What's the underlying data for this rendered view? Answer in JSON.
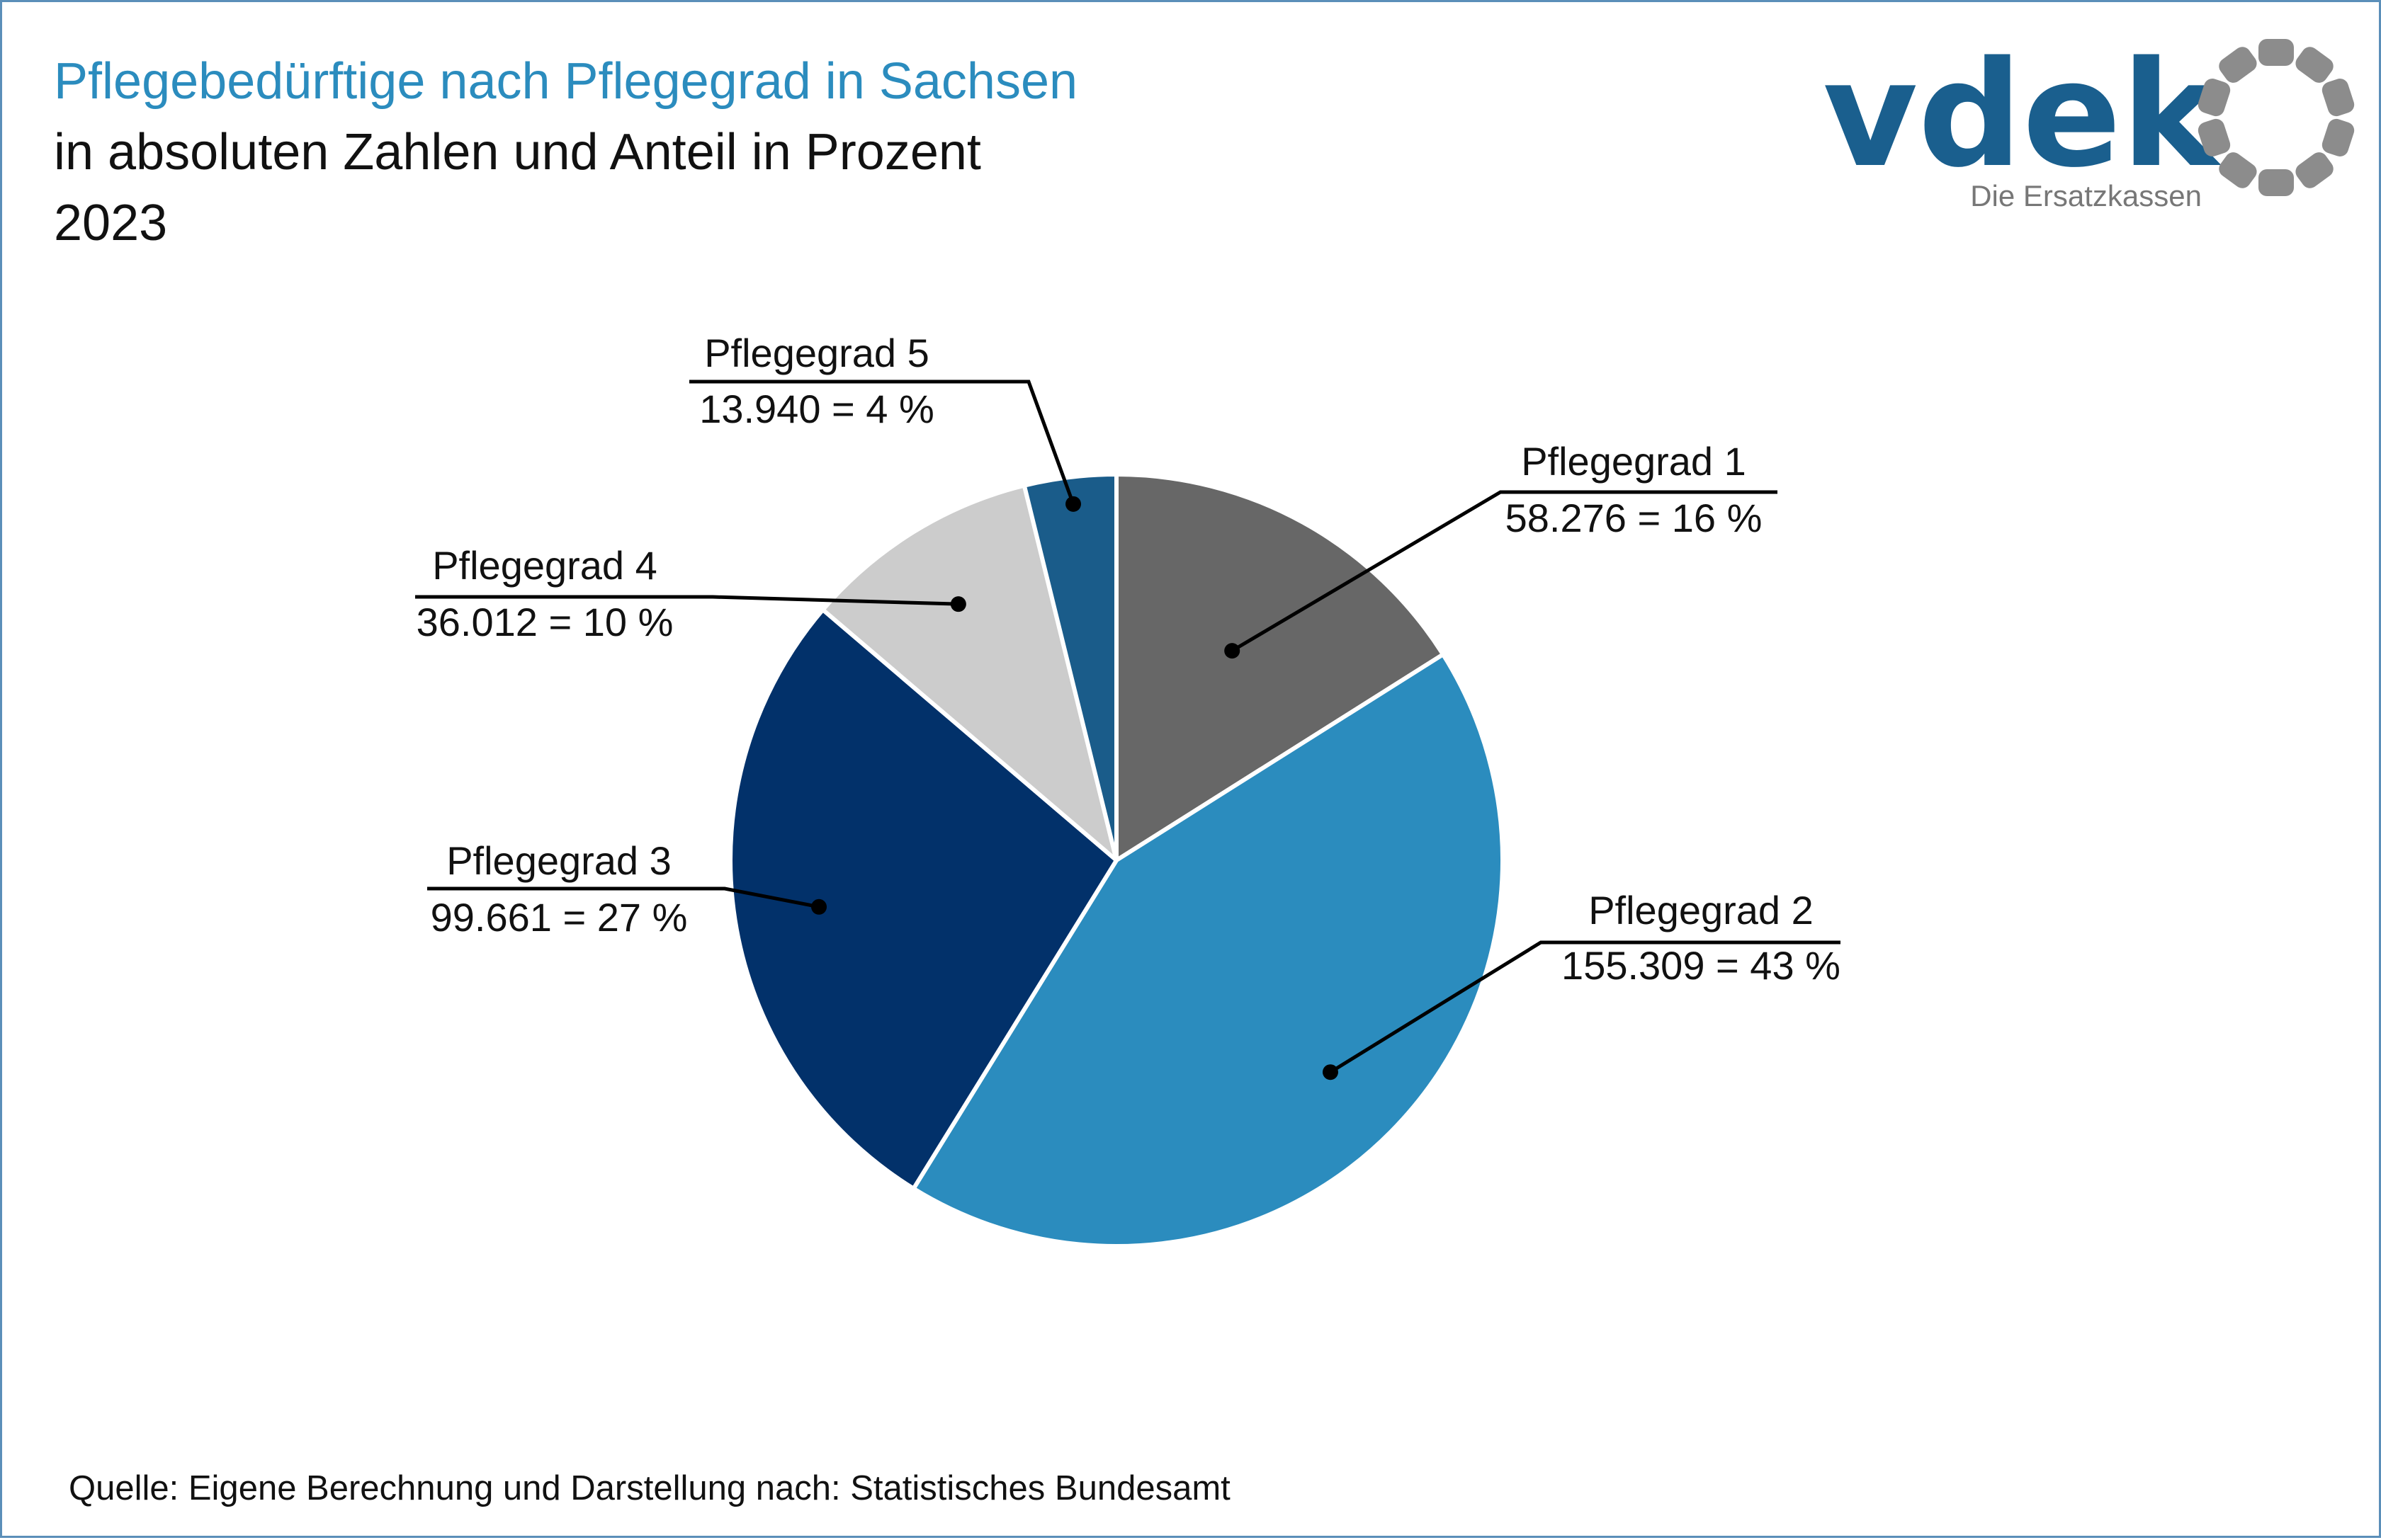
{
  "title": "Pflegebedürftige nach Pflegegrad in Sachsen",
  "subtitle": "in absoluten Zahlen und Anteil in Prozent",
  "year": "2023",
  "source": "Quelle: Eigene Berechnung und Darstellung nach: Statistisches Bundesamt",
  "logo": {
    "name": "vdek",
    "tagline": "Die Ersatzkassen",
    "color": "#1a5f8e",
    "ring_color": "#8c8c8c"
  },
  "chart_data": {
    "type": "pie",
    "title": "Pflegebedürftige nach Pflegegrad in Sachsen",
    "categories": [
      "Pflegegrad 1",
      "Pflegegrad 2",
      "Pflegegrad 3",
      "Pflegegrad 4",
      "Pflegegrad 5"
    ],
    "values": [
      58276,
      155309,
      99661,
      36012,
      13940
    ],
    "value_labels": [
      "58.276 = 16 %",
      "155.309 = 43 %",
      "99.661 = 27 %",
      "36.012 = 10 %",
      "13.940 = 4 %"
    ],
    "percentages": [
      16,
      43,
      27,
      10,
      4
    ],
    "colors": [
      "#676767",
      "#2b8cbe",
      "#02316a",
      "#cccccc",
      "#1a5c8a"
    ],
    "start_angle": "12 o'clock",
    "direction": "clockwise"
  }
}
